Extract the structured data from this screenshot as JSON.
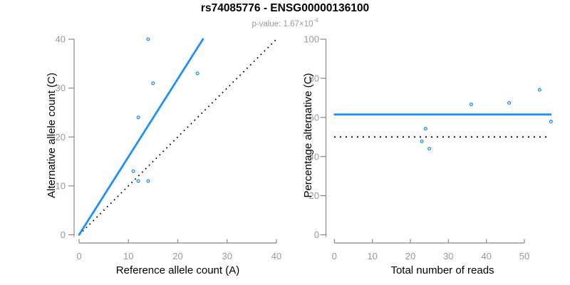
{
  "header": {
    "title": "rs74085776 - ENSG00000136100",
    "subtitle_prefix": "p-value: 1.67×10",
    "subtitle_exponent": "-4"
  },
  "colors": {
    "accent_blue": "#1E90FF",
    "axis_line_gray": "#888888",
    "tick_label_gray": "#999999",
    "dotted_line_black": "#000000",
    "title_black": "#000000",
    "subtitle_gray": "#999999"
  },
  "chart_data": [
    {
      "type": "scatter",
      "xlabel": "Reference allele count (A)",
      "ylabel": "Alternative allele count (C)",
      "xlim": [
        0,
        40
      ],
      "ylim": [
        0,
        40
      ],
      "xticks": [
        0,
        10,
        20,
        30,
        40
      ],
      "yticks": [
        0,
        10,
        20,
        30,
        40
      ],
      "grid": false,
      "marker": "open-circle",
      "points": [
        [
          11,
          13
        ],
        [
          12,
          11
        ],
        [
          12,
          24
        ],
        [
          14,
          11
        ],
        [
          14,
          40
        ],
        [
          15,
          31
        ],
        [
          24,
          33
        ]
      ],
      "fit_line": {
        "style": "solid",
        "color_key": "accent_blue",
        "slope": 1.6,
        "from": [
          0,
          0
        ],
        "to": [
          25.1,
          40
        ]
      },
      "identity_line": {
        "style": "dotted",
        "color_key": "dotted_line_black",
        "from": [
          0,
          0
        ],
        "to": [
          40,
          40
        ]
      }
    },
    {
      "type": "scatter",
      "xlabel": "Total number of reads",
      "ylabel": "Percentage alternative (C)",
      "xlim": [
        0,
        50
      ],
      "ylim": [
        0,
        100
      ],
      "xticks": [
        0,
        10,
        20,
        30,
        40,
        50
      ],
      "yticks": [
        0,
        20,
        40,
        60,
        80,
        100
      ],
      "grid": false,
      "marker": "open-circle",
      "points": [
        [
          23,
          47.8
        ],
        [
          24,
          54.2
        ],
        [
          25,
          44
        ],
        [
          36,
          66.7
        ],
        [
          46,
          67.4
        ],
        [
          54,
          74.1
        ],
        [
          57,
          57.9
        ]
      ],
      "mean_line": {
        "style": "solid",
        "color_key": "accent_blue",
        "y": 61.5
      },
      "expected_line": {
        "style": "dotted",
        "color_key": "dotted_line_black",
        "y": 50
      }
    }
  ]
}
